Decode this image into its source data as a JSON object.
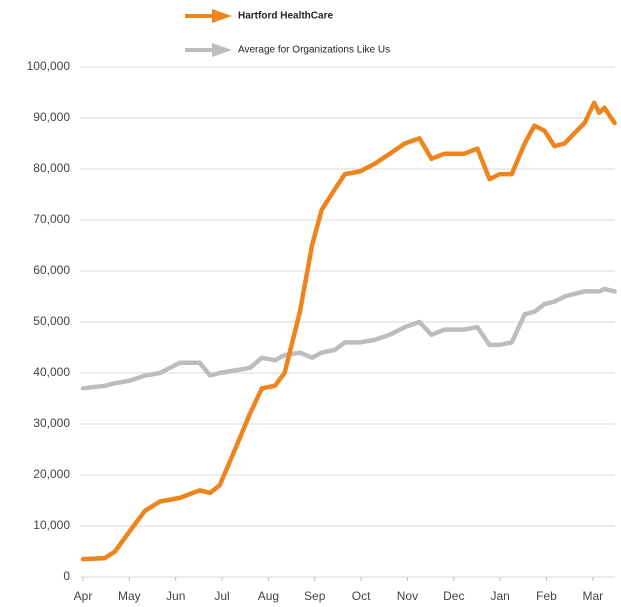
{
  "chart_data": {
    "type": "line",
    "x": [
      0,
      0.47,
      0.69,
      1.01,
      1.34,
      1.66,
      2.09,
      2.52,
      2.74,
      2.95,
      3.28,
      3.6,
      3.86,
      4.14,
      4.35,
      4.68,
      4.94,
      5.15,
      5.43,
      5.65,
      5.97,
      6.29,
      6.62,
      6.94,
      7.26,
      7.52,
      7.8,
      8.23,
      8.51,
      8.77,
      8.99,
      9.25,
      9.53,
      9.74,
      9.96,
      10.17,
      10.39,
      10.6,
      10.82,
      11.03,
      11.14,
      11.25,
      11.47
    ],
    "series": [
      {
        "name": "Hartford HealthCare",
        "color": "#f0841c",
        "values": [
          3500,
          3700,
          5000,
          9000,
          13000,
          14800,
          15500,
          17000,
          16500,
          18000,
          25000,
          32000,
          37000,
          37500,
          40000,
          52000,
          65000,
          72000,
          76000,
          79000,
          79500,
          81000,
          83000,
          85000,
          86000,
          82000,
          83000,
          83000,
          84000,
          78000,
          79000,
          79000,
          85000,
          88500,
          87500,
          84500,
          85000,
          87000,
          89000,
          93000,
          91000,
          92000,
          89000
        ]
      },
      {
        "name": "Average for Organizations Like Us",
        "color": "#bdbdbd",
        "values": [
          37000,
          37500,
          38000,
          38500,
          39500,
          40000,
          42000,
          42000,
          39500,
          40000,
          40500,
          41000,
          43000,
          42500,
          43500,
          44000,
          43000,
          44000,
          44500,
          46000,
          46000,
          46500,
          47500,
          49000,
          50000,
          47500,
          48500,
          48500,
          49000,
          45500,
          45500,
          46000,
          51500,
          52000,
          53500,
          54000,
          55000,
          55500,
          56000,
          56000,
          56000,
          56500,
          56000
        ]
      }
    ],
    "xlim": [
      0,
      11.5
    ],
    "xticks": [
      {
        "value": 0,
        "label": "Apr"
      },
      {
        "value": 1,
        "label": "May"
      },
      {
        "value": 2,
        "label": "Jun"
      },
      {
        "value": 3,
        "label": "Jul"
      },
      {
        "value": 4,
        "label": "Aug"
      },
      {
        "value": 5,
        "label": "Sep"
      },
      {
        "value": 6,
        "label": "Oct"
      },
      {
        "value": 7,
        "label": "Nov"
      },
      {
        "value": 8,
        "label": "Dec"
      },
      {
        "value": 9,
        "label": "Jan"
      },
      {
        "value": 10,
        "label": "Feb"
      },
      {
        "value": 11,
        "label": "Mar"
      }
    ],
    "ylim": [
      0,
      100000
    ],
    "yticks": [
      0,
      {
        "value": 10000,
        "label": "10,000"
      },
      {
        "value": 20000,
        "label": "20,000"
      },
      {
        "value": 30000,
        "label": "30,000"
      },
      {
        "value": 40000,
        "label": "40,000"
      },
      {
        "value": 50000,
        "label": "50,000"
      },
      {
        "value": 60000,
        "label": "60,000"
      },
      {
        "value": 70000,
        "label": "70,000"
      },
      {
        "value": 80000,
        "label": "80,000"
      },
      {
        "value": 90000,
        "label": "90,000"
      },
      {
        "value": 100000,
        "label": "100,000"
      }
    ],
    "grid": true
  }
}
